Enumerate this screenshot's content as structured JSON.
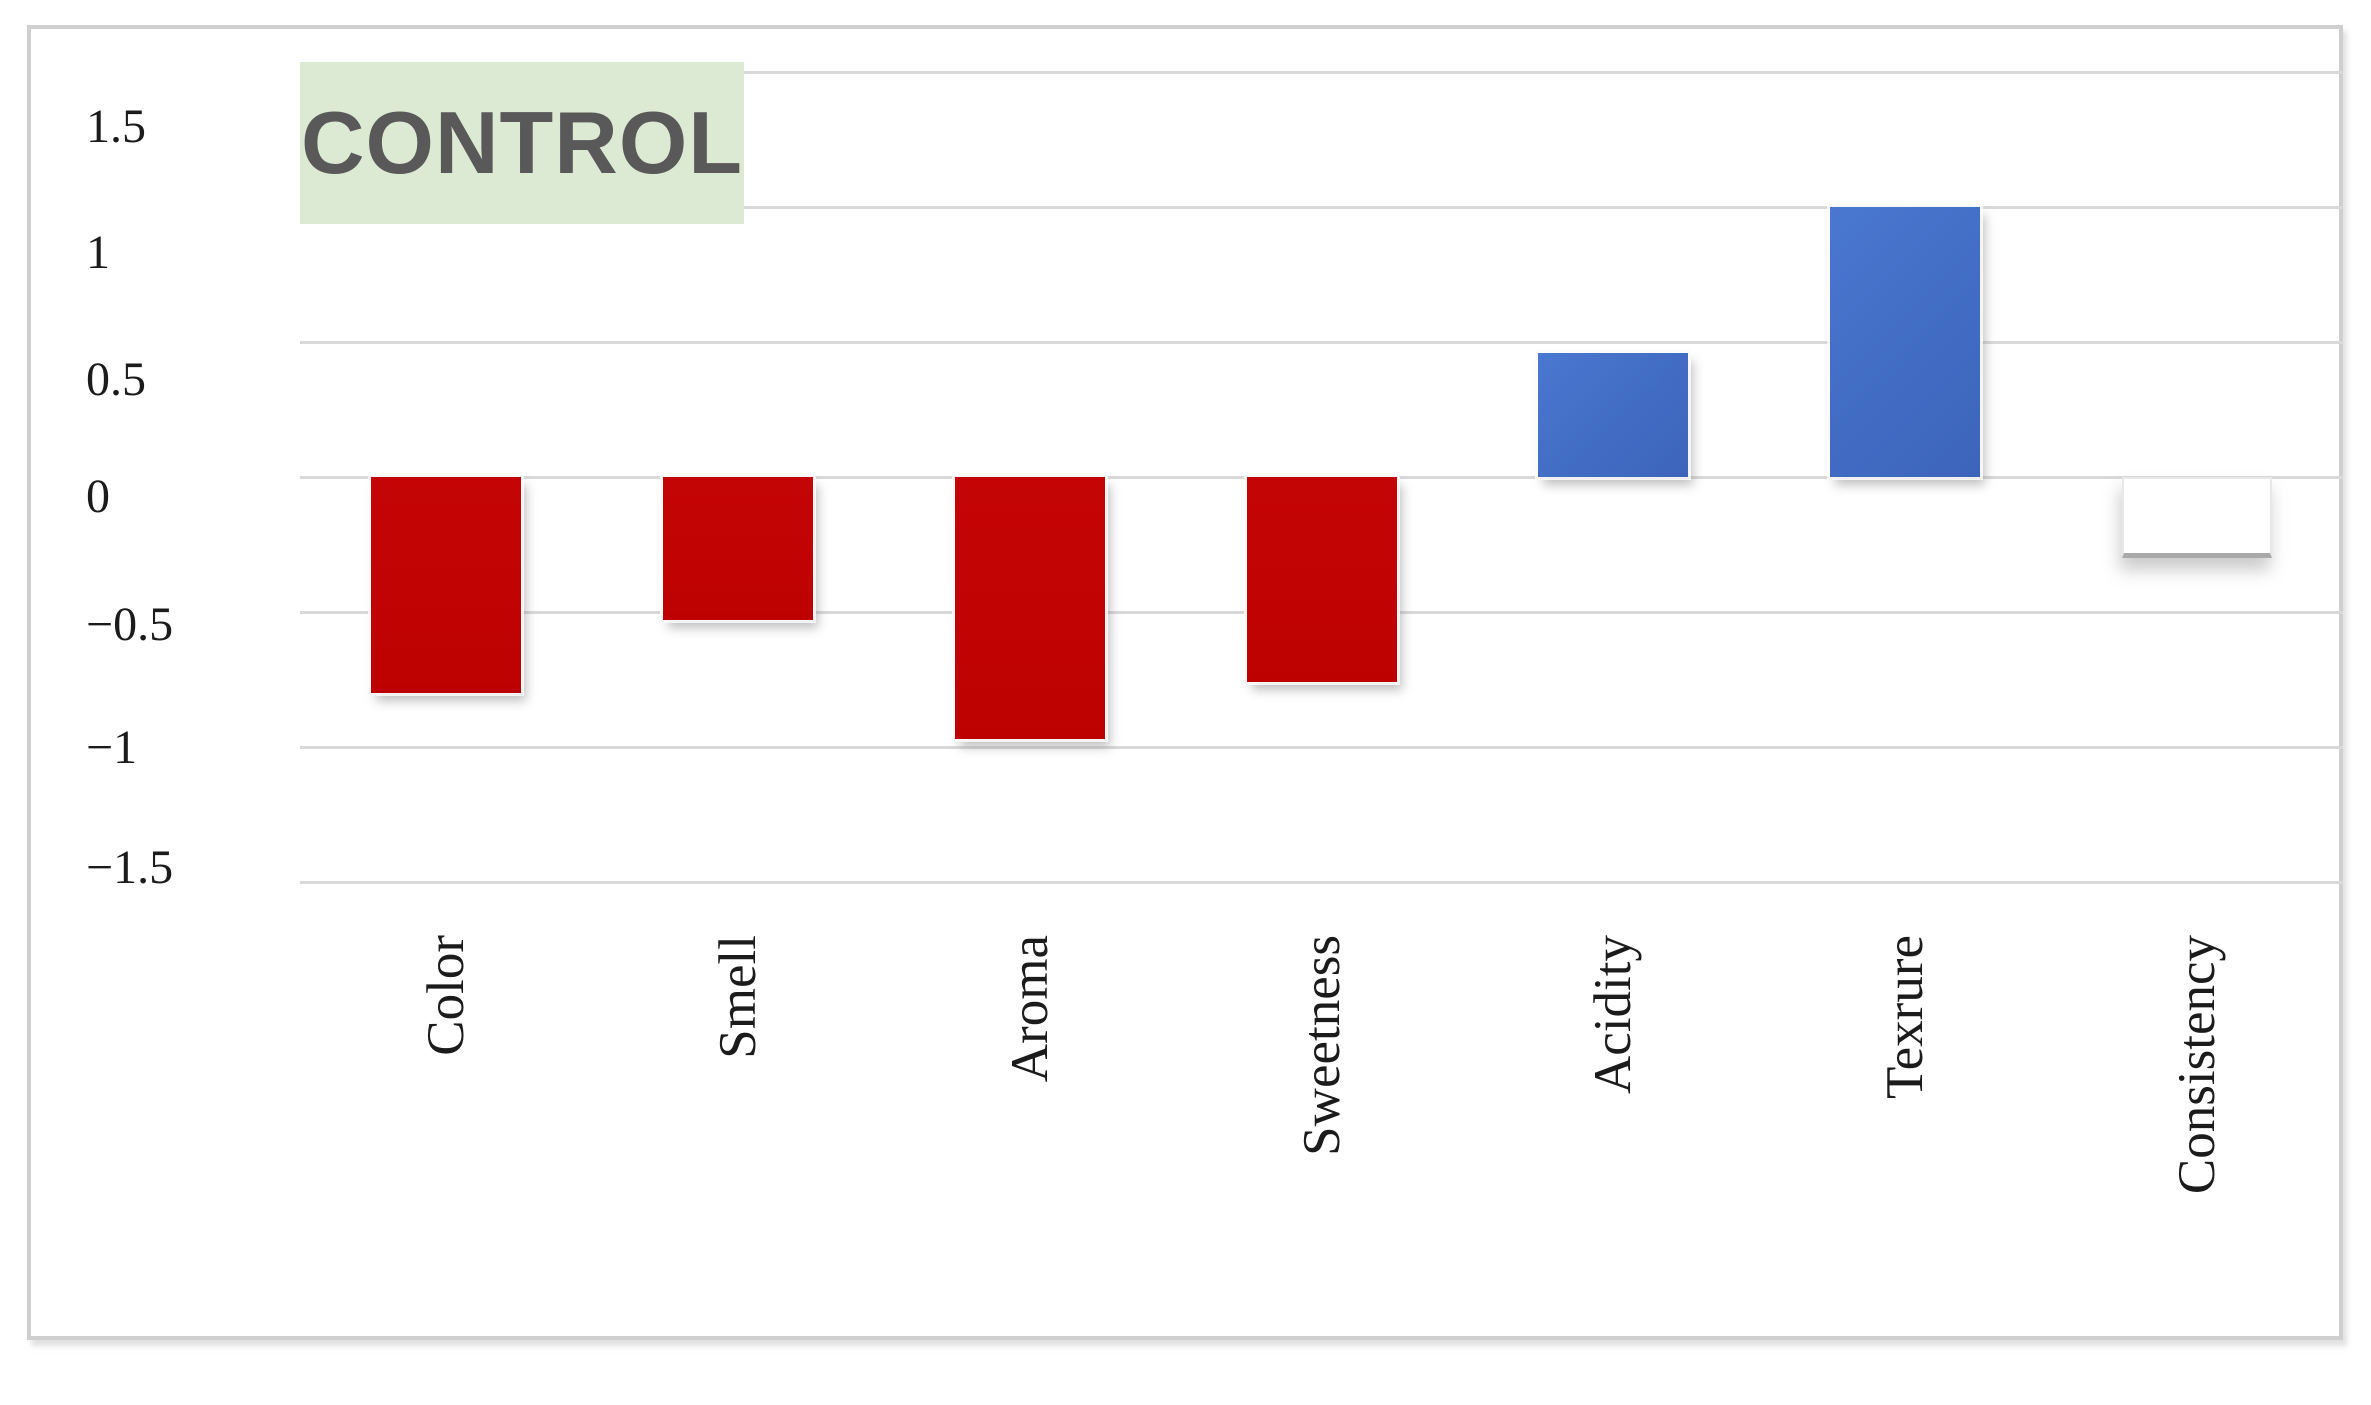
{
  "chart_data": {
    "type": "bar",
    "title": "CONTROL",
    "categories": [
      "Color",
      "Smell",
      "Aroma",
      "Sweetness",
      "Acidity",
      "Texrure",
      "Consistency"
    ],
    "values": [
      -0.8,
      -0.53,
      -0.97,
      -0.76,
      0.46,
      1.0,
      -0.3
    ],
    "bar_styles": [
      "negative",
      "negative",
      "negative",
      "negative",
      "positive",
      "positive",
      "neutral"
    ],
    "y_ticks": [
      "1.5",
      "1",
      "0.5",
      "0",
      "−0.5",
      "−1",
      "−1.5"
    ],
    "y_tick_values": [
      1.5,
      1,
      0.5,
      0,
      -0.5,
      -1,
      -1.5
    ],
    "ylim": [
      -1.5,
      1.5
    ],
    "xlabel": "",
    "ylabel": "",
    "grid": true,
    "legend_position": "none",
    "colors": {
      "negative_bar": "#c00000",
      "positive_bar": "#3e68c0",
      "neutral_bar": "#ffffff",
      "title_bg": "#dce9d3",
      "title_text": "#595959",
      "gridline": "#d9d9d9",
      "frame_border": "#cfcfcf",
      "tick_text": "#1b1b1b"
    }
  }
}
